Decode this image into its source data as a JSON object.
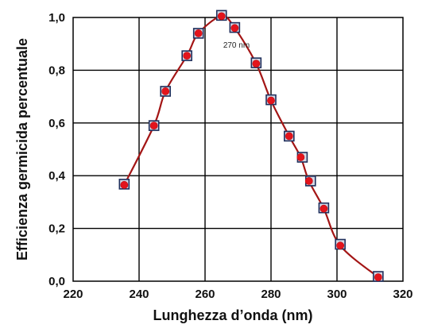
{
  "chart_data": {
    "type": "line",
    "xlabel": "Lunghezza d’onda (nm)",
    "ylabel": "Efficienza germicida percentuale",
    "xlim": [
      220,
      320
    ],
    "ylim": [
      0.0,
      1.0
    ],
    "x_ticks": [
      220,
      240,
      260,
      280,
      300,
      320
    ],
    "x_tick_labels": [
      "220",
      "240",
      "260",
      "280",
      "300",
      "320"
    ],
    "y_ticks": [
      0.0,
      0.2,
      0.4,
      0.6,
      0.8,
      1.0
    ],
    "y_tick_labels": [
      "0,0",
      "0,2",
      "0,4",
      "0,6",
      "0,8",
      "1,0"
    ],
    "grid": true,
    "annotation": {
      "text": "270 nm",
      "x": 265.5,
      "y": 0.955
    },
    "colors": {
      "curve": "#a31515",
      "point_fill": "#e3141c",
      "square_outline": "#1f2f5c",
      "square_fill": "#d4d8e4",
      "grid": "#000000"
    },
    "series": [
      {
        "x": [
          235.5,
          244.5,
          248,
          254.5,
          258,
          265,
          269,
          275.5,
          280,
          285.5,
          289,
          291.5,
          296,
          301,
          312.5
        ],
        "y": [
          0.365,
          0.59,
          0.72,
          0.855,
          0.94,
          1.005,
          0.96,
          0.825,
          0.685,
          0.55,
          0.47,
          0.38,
          0.275,
          0.135,
          0.015
        ]
      }
    ],
    "markers": [
      {
        "x": 235.5,
        "y": 0.368
      },
      {
        "x": 244.5,
        "y": 0.59
      },
      {
        "x": 248,
        "y": 0.72
      },
      {
        "x": 254.5,
        "y": 0.855
      },
      {
        "x": 258,
        "y": 0.94
      },
      {
        "x": 265,
        "y": 1.008
      },
      {
        "x": 269,
        "y": 0.962
      },
      {
        "x": 275.5,
        "y": 0.828
      },
      {
        "x": 280,
        "y": 0.688
      },
      {
        "x": 285.5,
        "y": 0.55
      },
      {
        "x": 289.5,
        "y": 0.47
      },
      {
        "x": 292,
        "y": 0.38
      },
      {
        "x": 296,
        "y": 0.278
      },
      {
        "x": 301,
        "y": 0.14
      },
      {
        "x": 312.5,
        "y": 0.018
      }
    ]
  }
}
